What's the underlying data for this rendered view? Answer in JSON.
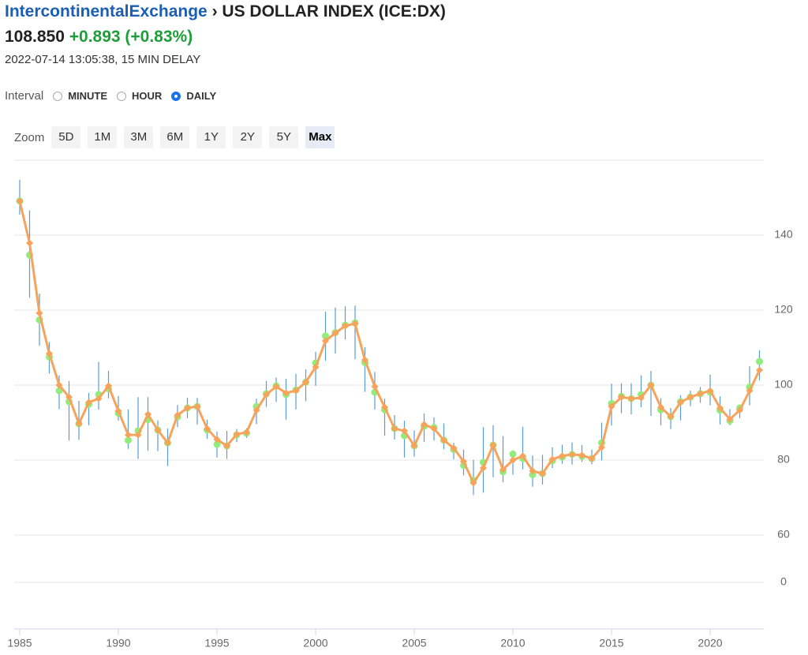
{
  "header": {
    "exchange": "IntercontinentalExchange",
    "separator": "›",
    "title": "US DOLLAR INDEX (ICE:DX)",
    "price": "108.850",
    "change": "+0.893 (+0.83%)",
    "timestamp": "2022-07-14 13:05:38, 15 MIN DELAY"
  },
  "interval": {
    "label": "Interval",
    "options": [
      "MINUTE",
      "HOUR",
      "DAILY"
    ],
    "selected": 2
  },
  "zoom": {
    "label": "Zoom",
    "options": [
      "5D",
      "1M",
      "3M",
      "6M",
      "1Y",
      "2Y",
      "5Y",
      "Max"
    ],
    "selected": 7
  },
  "chart_data": {
    "type": "ohlc",
    "x": [
      1985,
      1985.5,
      1986,
      1986.5,
      1987,
      1987.5,
      1988,
      1988.5,
      1989,
      1989.5,
      1990,
      1990.5,
      1991,
      1991.5,
      1992,
      1992.5,
      1993,
      1993.5,
      1994,
      1994.5,
      1995,
      1995.5,
      1996,
      1996.5,
      1997,
      1997.5,
      1998,
      1998.5,
      1999,
      1999.5,
      2000,
      2000.5,
      2001,
      2001.5,
      2002,
      2002.5,
      2003,
      2003.5,
      2004,
      2004.5,
      2005,
      2005.5,
      2006,
      2006.5,
      2007,
      2007.5,
      2008,
      2008.5,
      2009,
      2009.5,
      2010,
      2010.5,
      2011,
      2011.5,
      2012,
      2012.5,
      2013,
      2013.5,
      2014,
      2014.5,
      2015,
      2015.5,
      2016,
      2016.5,
      2017,
      2017.5,
      2018,
      2018.5,
      2019,
      2019.5,
      2020,
      2020.5,
      2021,
      2021.5,
      2022,
      2022.5
    ],
    "open": [
      149.1,
      134.7,
      117.4,
      107.5,
      98.5,
      95.6,
      89.7,
      94.9,
      97.5,
      99.0,
      92.5,
      85.3,
      87.8,
      90.8,
      88.0,
      84.6,
      91.5,
      93.9,
      94.3,
      88.0,
      84.2,
      83.8,
      86.7,
      87.2,
      94.3,
      97.7,
      99.8,
      97.5,
      98.7,
      100.8,
      105.9,
      113.1,
      114.0,
      116.0,
      116.6,
      106.0,
      98.1,
      93.4,
      88.4,
      86.5,
      83.8,
      89.0,
      88.7,
      85.3,
      82.8,
      78.6,
      74.6,
      79.4,
      84.0,
      76.9,
      81.6,
      80.4,
      76.1,
      76.4,
      79.8,
      80.8,
      81.5,
      81.0,
      80.4,
      84.6,
      95.1,
      97.0,
      96.4,
      97.5,
      100.0,
      93.4,
      91.6,
      95.6,
      96.8,
      97.7,
      98.1,
      93.3,
      90.5,
      93.9,
      99.5,
      106.3
    ],
    "high": [
      154.8,
      146.6,
      124.4,
      111.5,
      102.6,
      101.1,
      95.8,
      97.9,
      106.2,
      103.8,
      97.1,
      93.5,
      96.8,
      96.8,
      90.6,
      88.4,
      94.7,
      96.6,
      96.6,
      90.8,
      87.6,
      87.8,
      88.3,
      88.5,
      96.4,
      101.1,
      102.0,
      101.7,
      103.0,
      104.2,
      108.9,
      119.6,
      120.7,
      121.0,
      121.2,
      110.1,
      103.5,
      96.4,
      92.0,
      90.5,
      87.9,
      92.4,
      91.4,
      89.8,
      84.6,
      82.8,
      80.0,
      88.8,
      89.3,
      86.4,
      82.6,
      88.9,
      81.2,
      81.4,
      83.4,
      84.1,
      84.7,
      84.0,
      82.8,
      90.0,
      100.4,
      100.5,
      100.5,
      102.6,
      103.8,
      96.5,
      93.9,
      97.3,
      98.5,
      99.5,
      102.8,
      97.0,
      93.6,
      94.6,
      105.0,
      109.3
    ],
    "low": [
      145.5,
      123.3,
      110.5,
      103.1,
      93.6,
      85.2,
      85.4,
      89.3,
      93.5,
      96.5,
      90.5,
      83.0,
      80.3,
      82.5,
      82.4,
      78.4,
      88.8,
      91.2,
      89.5,
      85.7,
      80.7,
      80.3,
      84.8,
      85.9,
      89.6,
      94.2,
      95.5,
      90.8,
      93.5,
      95.7,
      99.8,
      106.5,
      108.4,
      112.2,
      106.9,
      98.2,
      93.5,
      86.5,
      85.5,
      80.7,
      80.9,
      84.8,
      85.2,
      82.9,
      80.2,
      75.9,
      70.7,
      71.3,
      75.4,
      74.1,
      76.1,
      77.5,
      72.9,
      73.5,
      77.9,
      79.0,
      78.8,
      79.5,
      78.9,
      79.9,
      89.2,
      92.5,
      92.2,
      94.1,
      91.8,
      89.3,
      88.3,
      90.6,
      94.4,
      95.3,
      94.6,
      89.5,
      89.3,
      91.2,
      94.6,
      101.3
    ],
    "close": [
      149.1,
      137.9,
      119.2,
      108.4,
      100.0,
      96.8,
      89.7,
      95.4,
      96.4,
      99.8,
      93.1,
      86.7,
      86.7,
      92.2,
      88.0,
      84.6,
      92.0,
      93.9,
      94.3,
      88.4,
      85.5,
      83.8,
      86.9,
      87.4,
      93.3,
      97.5,
      99.6,
      97.9,
      98.5,
      100.8,
      104.8,
      111.8,
      113.9,
      115.8,
      116.4,
      106.7,
      99.6,
      94.1,
      88.4,
      87.8,
      83.8,
      89.5,
      88.4,
      85.3,
      83.2,
      79.6,
      73.9,
      77.9,
      84.0,
      77.5,
      80.0,
      81.1,
      77.1,
      76.4,
      80.2,
      81.1,
      81.5,
      81.3,
      80.4,
      83.4,
      94.3,
      96.8,
      96.4,
      96.6,
      100.0,
      94.1,
      91.6,
      95.4,
      96.8,
      97.7,
      98.5,
      93.9,
      90.9,
      93.3,
      98.5,
      104.0
    ],
    "colors": {
      "wick": "#5b9bd5",
      "open": "#90ed7d",
      "close": "#f7a35c"
    },
    "xlim": [
      1984.8,
      2022.7
    ],
    "xticks": [
      1985,
      1990,
      1995,
      2000,
      2005,
      2010,
      2015,
      2020
    ],
    "ylim": [
      0,
      160
    ],
    "yticks": [
      0,
      60,
      80,
      100,
      120,
      140
    ],
    "grid": true
  }
}
